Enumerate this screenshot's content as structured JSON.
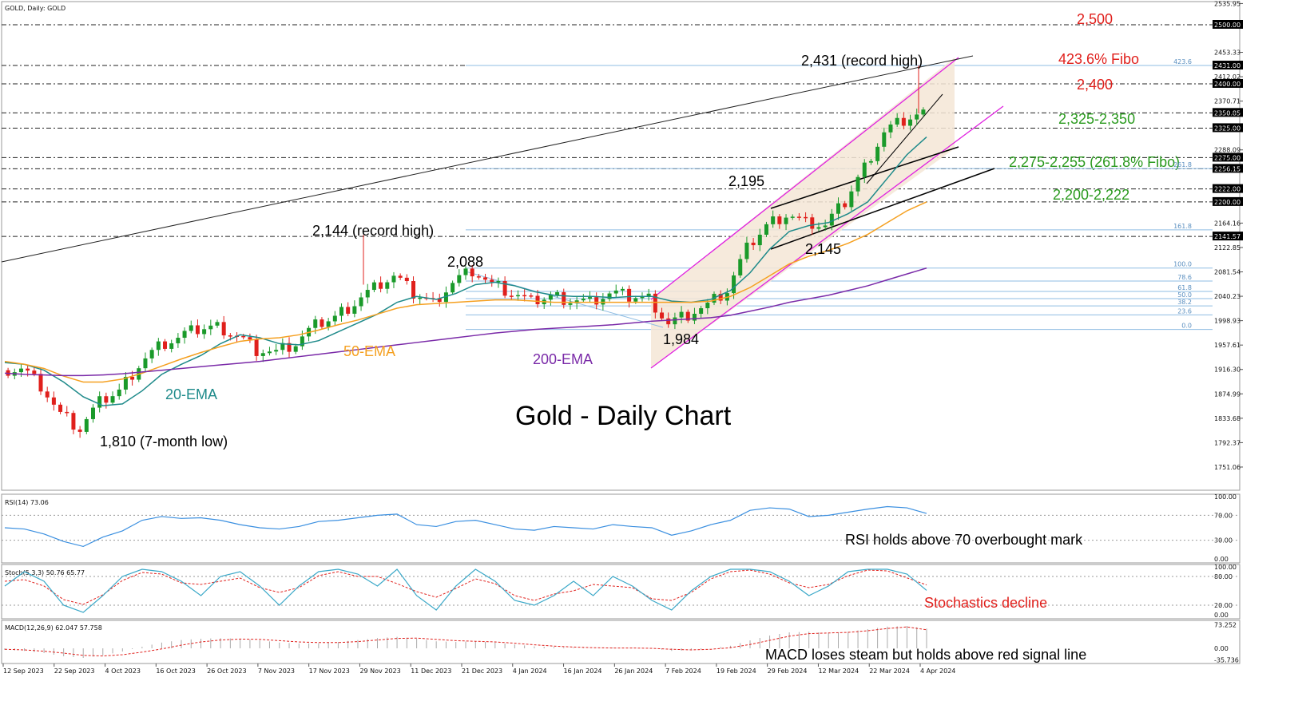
{
  "header": {
    "symbol_label": "GOLD, Daily:  GOLD"
  },
  "chart_data": {
    "type": "candlestick",
    "title": "Gold - Daily Chart",
    "y_axis_labels": [
      "2535.95",
      "2500.00",
      "2453.33",
      "2431.00",
      "2412.02",
      "2400.00",
      "2370.71",
      "2350.85",
      "2325.00",
      "2288.09",
      "2275.00",
      "2256.15",
      "2222.00",
      "2200.00",
      "2164.16",
      "2141.57",
      "2122.85",
      "2081.54",
      "2040.23",
      "1998.93",
      "1957.61",
      "1916.30",
      "1874.99",
      "1833.68",
      "1792.37",
      "1751.06"
    ],
    "x_axis_labels": [
      "12 Sep 2023",
      "22 Sep 2023",
      "4 Oct 2023",
      "16 Oct 2023",
      "26 Oct 2023",
      "7 Nov 2023",
      "17 Nov 2023",
      "29 Nov 2023",
      "11 Dec 2023",
      "21 Dec 2023",
      "4 Jan 2024",
      "16 Jan 2024",
      "26 Jan 2024",
      "7 Feb 2024",
      "19 Feb 2024",
      "29 Feb 2024",
      "12 Mar 2024",
      "22 Mar 2024",
      "4 Apr 2024"
    ],
    "ylim": [
      1710,
      2540
    ],
    "price_levels": [
      {
        "value": 2500,
        "label": "2,500",
        "color": "#e0201c"
      },
      {
        "value": 2431,
        "label": "423.6% Fibo",
        "color": "#e0201c"
      },
      {
        "value": 2400,
        "label": "2,400",
        "color": "#e0201c"
      },
      {
        "value": 2337,
        "label": "2,325-2,350",
        "color": "#2a9a1e"
      },
      {
        "value": 2265,
        "label": "2,275-2,255 (261.8% Fibo)",
        "color": "#2a9a1e"
      },
      {
        "value": 2211,
        "label": "2,200-2,222",
        "color": "#2a9a1e"
      }
    ],
    "fib_levels": [
      {
        "label": "423.6",
        "value": 2431
      },
      {
        "label": "261.8",
        "value": 2256.5
      },
      {
        "label": "161.8",
        "value": 2152.7
      },
      {
        "label": "100.0",
        "value": 2088
      },
      {
        "label": "78.6",
        "value": 2066
      },
      {
        "label": "61.8",
        "value": 2048.5
      },
      {
        "label": "50.0",
        "value": 2036.2
      },
      {
        "label": "38.2",
        "value": 2023.9
      },
      {
        "label": "23.6",
        "value": 2008.7
      },
      {
        "label": "0.0",
        "value": 1984
      }
    ],
    "annotations": [
      "2,431 (record high)",
      "2,144 (record high)",
      "2,088",
      "2,195",
      "2,145",
      "1,984",
      "1,810 (7-month low)",
      "20-EMA",
      "50-EMA",
      "200-EMA"
    ],
    "series": [
      {
        "name": "20-EMA",
        "color": "#1e8a8a",
        "values": [
          1928,
          1925,
          1915,
          1895,
          1870,
          1855,
          1858,
          1880,
          1908,
          1925,
          1940,
          1960,
          1975,
          1970,
          1960,
          1958,
          1965,
          1980,
          1995,
          2010,
          2030,
          2040,
          2035,
          2045,
          2060,
          2064,
          2058,
          2048,
          2042,
          2040,
          2040,
          2038,
          2040,
          2040,
          2032,
          2030,
          2035,
          2050,
          2080,
          2120,
          2150,
          2160,
          2165,
          2180,
          2200,
          2240,
          2280,
          2310
        ]
      },
      {
        "name": "50-EMA",
        "color": "#f5a020",
        "values": [
          1930,
          1925,
          1918,
          1905,
          1895,
          1895,
          1900,
          1910,
          1922,
          1934,
          1945,
          1955,
          1964,
          1968,
          1970,
          1975,
          1983,
          1992,
          2000,
          2010,
          2020,
          2026,
          2028,
          2030,
          2032,
          2034,
          2034,
          2032,
          2030,
          2030,
          2030,
          2030,
          2030,
          2030,
          2030,
          2030,
          2032,
          2040,
          2055,
          2075,
          2095,
          2108,
          2118,
          2130,
          2145,
          2165,
          2185,
          2200
        ]
      },
      {
        "name": "200-EMA",
        "color": "#7a2aa8",
        "values": [
          1910,
          1908,
          1907,
          1906,
          1906,
          1907,
          1909,
          1912,
          1915,
          1918,
          1921,
          1924,
          1927,
          1930,
          1934,
          1938,
          1942,
          1946,
          1950,
          1954,
          1958,
          1962,
          1966,
          1970,
          1974,
          1978,
          1981,
          1984,
          1986,
          1988,
          1990,
          1992,
          1995,
          1998,
          2000,
          2002,
          2004,
          2008,
          2015,
          2022,
          2030,
          2036,
          2042,
          2050,
          2058,
          2068,
          2078,
          2088
        ]
      },
      {
        "name": "Close",
        "color": "#000000",
        "values": [
          1915,
          1920,
          1890,
          1840,
          1815,
          1860,
          1880,
          1925,
          1955,
          1970,
          1985,
          1990,
          1975,
          1950,
          1945,
          1960,
          1990,
          2005,
          2030,
          2055,
          2075,
          2045,
          2030,
          2065,
          2085,
          2060,
          2045,
          2030,
          2040,
          2035,
          2030,
          2045,
          2040,
          2038,
          1995,
          2010,
          2025,
          2050,
          2120,
          2160,
          2180,
          2165,
          2160,
          2200,
          2260,
          2320,
          2340,
          2352
        ]
      }
    ],
    "indicators": {
      "rsi": {
        "label": "RSI(14) 73.06",
        "ticks": [
          "100.00",
          "70.00",
          "30.00",
          "0.00"
        ],
        "annotation": "RSI holds above 70 overbought mark",
        "values": [
          50,
          48,
          40,
          28,
          20,
          35,
          45,
          62,
          68,
          65,
          66,
          62,
          55,
          50,
          48,
          52,
          60,
          62,
          66,
          70,
          72,
          55,
          52,
          60,
          62,
          55,
          48,
          46,
          52,
          50,
          48,
          55,
          52,
          50,
          38,
          45,
          55,
          62,
          78,
          82,
          80,
          68,
          70,
          75,
          80,
          84,
          82,
          73
        ]
      },
      "stoch": {
        "label": "Stoch(5,3,3) 50.76 65.77",
        "ticks": [
          "100.00",
          "80.00",
          "20.00",
          "0.00"
        ],
        "annotation": "Stochastics decline",
        "values": [
          60,
          90,
          70,
          20,
          5,
          40,
          80,
          95,
          90,
          70,
          40,
          80,
          90,
          60,
          20,
          60,
          90,
          95,
          85,
          60,
          95,
          40,
          10,
          60,
          95,
          70,
          30,
          20,
          40,
          70,
          40,
          80,
          60,
          30,
          10,
          50,
          80,
          95,
          95,
          90,
          70,
          40,
          60,
          90,
          95,
          95,
          85,
          51
        ]
      },
      "macd": {
        "label": "MACD(12,26,9) 62.047 57.758",
        "ticks": [
          "73.252",
          "0.00",
          "-35.736"
        ],
        "annotation": "MACD loses steam but holds above red signal line",
        "values": [
          -5,
          -8,
          -15,
          -25,
          -30,
          -22,
          -10,
          5,
          18,
          26,
          30,
          32,
          30,
          25,
          18,
          15,
          16,
          20,
          26,
          32,
          36,
          30,
          22,
          20,
          22,
          18,
          12,
          6,
          4,
          2,
          0,
          2,
          1,
          0,
          -8,
          -6,
          0,
          8,
          25,
          40,
          50,
          52,
          48,
          52,
          60,
          68,
          70,
          62
        ],
        "signal": [
          -3,
          -5,
          -9,
          -15,
          -22,
          -24,
          -20,
          -12,
          -2,
          10,
          20,
          26,
          29,
          28,
          24,
          20,
          18,
          18,
          21,
          26,
          31,
          32,
          28,
          24,
          22,
          20,
          16,
          11,
          7,
          4,
          2,
          1,
          1,
          0,
          -3,
          -5,
          -3,
          2,
          12,
          25,
          38,
          46,
          48,
          50,
          55,
          62,
          67,
          58
        ]
      }
    }
  }
}
